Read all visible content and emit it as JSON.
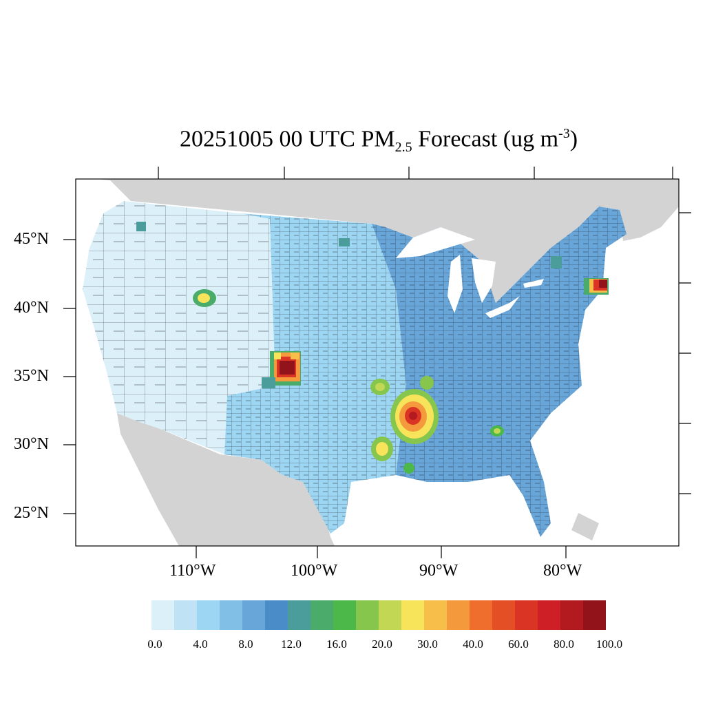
{
  "title": {
    "prefix": "20251005 00 UTC PM",
    "subscript": "2.5",
    "middle": " Forecast (ug m",
    "superscript": "-3",
    "suffix": ")"
  },
  "axes": {
    "lat_labels": [
      "45°N",
      "40°N",
      "35°N",
      "30°N",
      "25°N"
    ],
    "lon_labels": [
      "110°W",
      "100°W",
      "90°W",
      "80°W"
    ]
  },
  "colorbar": {
    "colors": [
      "#dcf0fa",
      "#bfe3f5",
      "#9cd6f2",
      "#82bfe6",
      "#68a6da",
      "#4a8cc8",
      "#4a9d9b",
      "#4aab6a",
      "#4db84a",
      "#86c64c",
      "#c2d854",
      "#f7e45a",
      "#f7be4a",
      "#f49a3c",
      "#ef6e2e",
      "#e54f26",
      "#da3424",
      "#ce1e26",
      "#b31a1f",
      "#921319"
    ],
    "labels": [
      "0.0",
      "4.0",
      "8.0",
      "12.0",
      "16.0",
      "20.0",
      "30.0",
      "40.0",
      "60.0",
      "80.0",
      "100.0"
    ]
  },
  "map_colors": {
    "land": "#d3d3d3",
    "water": "#ffffff",
    "west": "#dcf0fa",
    "plains": "#9cd6f2",
    "east": "#68a6da",
    "county_lines": "#1a1a1a"
  },
  "hotspots": [
    {
      "name": "hotspot-southeast-colorado",
      "peak_value": 100
    },
    {
      "name": "hotspot-arkansas-louisiana",
      "peak_value": 80
    },
    {
      "name": "hotspot-new-england",
      "peak_value": 100
    },
    {
      "name": "hotspot-northern-utah",
      "peak_value": 30
    },
    {
      "name": "hotspot-east-texas",
      "peak_value": 30
    },
    {
      "name": "hotspot-oklahoma",
      "peak_value": 20
    },
    {
      "name": "hotspot-alabama",
      "peak_value": 20
    }
  ]
}
